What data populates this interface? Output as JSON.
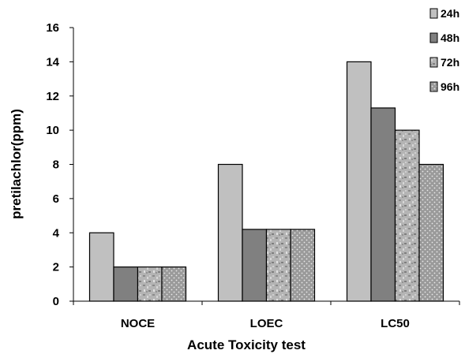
{
  "chart_data": {
    "type": "bar",
    "title": "",
    "xlabel": "Acute Toxicity test",
    "ylabel": "pretilachlor(ppm)",
    "ylim": [
      0,
      16
    ],
    "yticks": [
      0,
      2,
      4,
      6,
      8,
      10,
      12,
      14,
      16
    ],
    "categories": [
      "NOCE",
      "LOEC",
      "LC50"
    ],
    "series": [
      {
        "name": "24h",
        "values": [
          4,
          8,
          14
        ],
        "color": "#c0c0c0",
        "pattern": "solid"
      },
      {
        "name": "48h",
        "values": [
          2,
          4.2,
          11.3
        ],
        "color": "#808080",
        "pattern": "solid"
      },
      {
        "name": "72h",
        "values": [
          2,
          4.2,
          10
        ],
        "color": "#a8a8a8",
        "pattern": "granite"
      },
      {
        "name": "96h",
        "values": [
          2,
          4.2,
          8
        ],
        "color": "#999999",
        "pattern": "dots"
      }
    ],
    "grid": false,
    "legend_position": "top-right"
  }
}
